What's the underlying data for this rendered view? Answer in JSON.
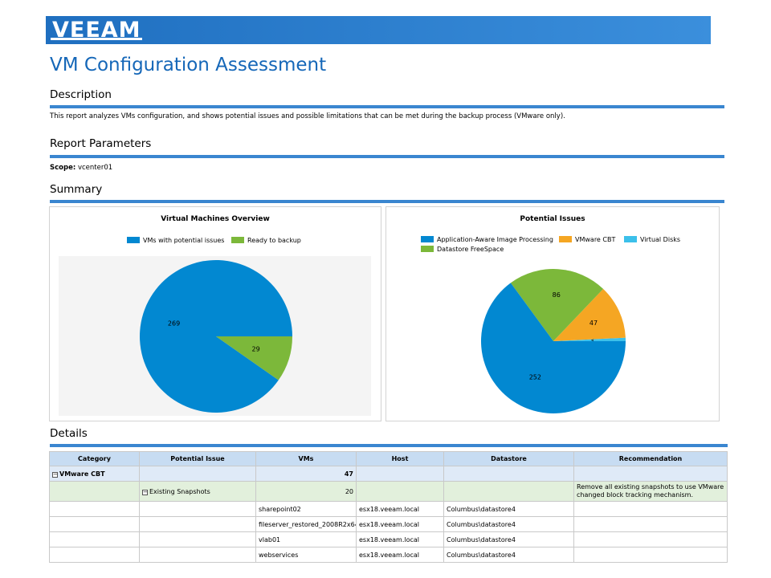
{
  "banner": {
    "logo_text": "VEEAM"
  },
  "title": "VM Configuration Assessment",
  "description": {
    "heading": "Description",
    "text": "This report analyzes VMs configuration, and shows potential issues and possible limitations that can be met during the backup process (VMware only)."
  },
  "parameters": {
    "heading": "Report Parameters",
    "scope_label": "Scope:",
    "scope_value": "vcenter01"
  },
  "summary": {
    "heading": "Summary"
  },
  "colors": {
    "blue": "#0288d1",
    "green": "#7cb83a",
    "orange": "#f5a623",
    "lightblue": "#3cc0ea"
  },
  "chart_data": [
    {
      "type": "pie",
      "title": "Virtual Machines Overview",
      "legend_placement": "top",
      "series": [
        {
          "name": "VMs with potential issues",
          "value": 269,
          "color": "#0288d1"
        },
        {
          "name": "Ready to backup",
          "value": 29,
          "color": "#7cb83a"
        }
      ]
    },
    {
      "type": "pie",
      "title": "Potential Issues",
      "legend_placement": "top",
      "series": [
        {
          "name": "Application-Aware Image Processing",
          "value": 252,
          "color": "#0288d1"
        },
        {
          "name": "VMware CBT",
          "value": 47,
          "color": "#f5a623"
        },
        {
          "name": "Virtual Disks",
          "value": 3,
          "color": "#3cc0ea"
        },
        {
          "name": "Datastore FreeSpace",
          "value": 86,
          "color": "#7cb83a"
        }
      ]
    }
  ],
  "details": {
    "heading": "Details",
    "columns": [
      "Category",
      "Potential Issue",
      "VMs",
      "Host",
      "Datastore",
      "Recommendation"
    ],
    "group": {
      "expander": "−",
      "category": "VMware CBT",
      "vms": "47"
    },
    "sub": {
      "expander": "−",
      "issue": "Existing Snapshots",
      "vms": "20",
      "recommendation": "Remove all existing snapshots to use VMware changed block tracking mechanism."
    },
    "rows": [
      {
        "vm": "sharepoint02",
        "host": "esx18.veeam.local",
        "datastore": "Columbus\\datastore4"
      },
      {
        "vm": "fileserver_restored_2008R2x64",
        "host": "esx18.veeam.local",
        "datastore": "Columbus\\datastore4"
      },
      {
        "vm": "vlab01",
        "host": "esx18.veeam.local",
        "datastore": "Columbus\\datastore4"
      },
      {
        "vm": "webservices",
        "host": "esx18.veeam.local",
        "datastore": "Columbus\\datastore4"
      }
    ]
  }
}
